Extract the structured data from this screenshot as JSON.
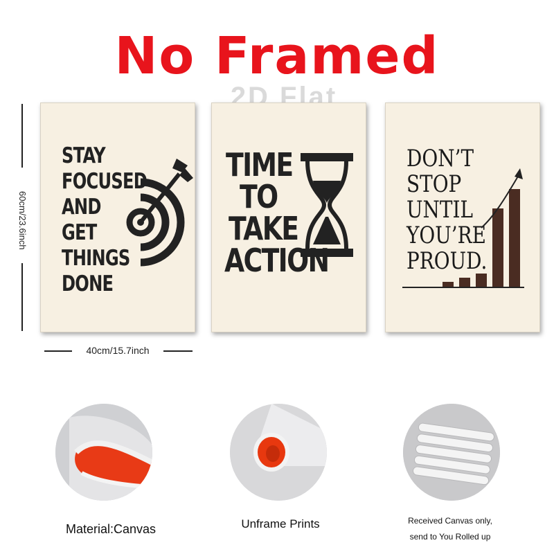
{
  "header": {
    "title": "No Framed",
    "watermark": "2D Flat"
  },
  "posters": [
    {
      "lines": [
        "STAY",
        "FOCUSED",
        "AND",
        "GET",
        "THINGS",
        "DONE"
      ]
    },
    {
      "lines": [
        "TIME",
        "TO",
        "TAKE",
        "ACTION"
      ]
    },
    {
      "lines": [
        "DON’T",
        "STOP",
        "UNTIL",
        "YOU’RE",
        "PROUD."
      ]
    }
  ],
  "dimensions": {
    "height": "60cm/23.6inch",
    "width": "40cm/15.7inch"
  },
  "features": [
    {
      "caption": "Material:Canvas"
    },
    {
      "caption": "Unframe  Prints"
    },
    {
      "caption_line1": "Received Canvas only,",
      "caption_line2": "send to You Rolled up"
    }
  ],
  "colors": {
    "headline": "#e8141c",
    "poster_bg": "#f7f0e2",
    "ink": "#222222",
    "bar": "#4a2c22"
  }
}
